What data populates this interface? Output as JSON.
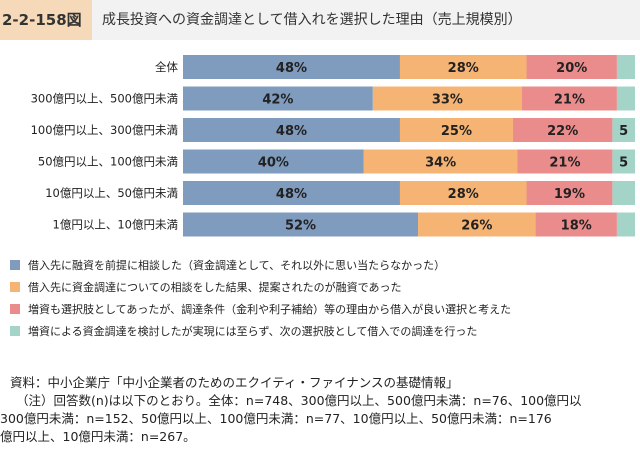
{
  "figure_number": "2-2-158図",
  "title": "成長投資への資金調達として借入れを選択した理由（売上規模別）",
  "chart_data": {
    "type": "bar",
    "stacked": "horizontal-100%",
    "categories": [
      "全体",
      "300億円以上、500億円未満",
      "100億円以上、300億円未満",
      "50億円以上、100億円未満",
      "10億円以上、50億円未満",
      "1億円以上、10億円未満"
    ],
    "series": [
      {
        "name": "借入先に融資を前提に相談した（資金調達として、それ以外に思い当たらなかった）",
        "color": "#7f9bbd",
        "values": [
          48,
          42,
          48,
          40,
          48,
          52
        ],
        "labels": [
          "48%",
          "42%",
          "48%",
          "40%",
          "48%",
          "52%"
        ]
      },
      {
        "name": "借入先に資金調達についての相談をした結果、提案されたのが融資であった",
        "color": "#f6b474",
        "values": [
          28,
          33,
          25,
          34,
          28,
          26
        ],
        "labels": [
          "28%",
          "33%",
          "25%",
          "34%",
          "28%",
          "26%"
        ]
      },
      {
        "name": "増資も選択肢としてあったが、調達条件（金利や利子補給）等の理由から借入が良い選択と考えた",
        "color": "#eb8c8c",
        "values": [
          20,
          21,
          22,
          21,
          19,
          18
        ],
        "labels": [
          "20%",
          "21%",
          "22%",
          "21%",
          "19%",
          "18%"
        ]
      },
      {
        "name": "増資による資金調達を検討したが実現には至らず、次の選択肢として借入での調達を行った",
        "color": "#a4d3c8",
        "values": [
          4,
          4,
          5,
          5,
          5,
          4
        ],
        "labels": [
          "",
          "",
          "5",
          "5",
          "",
          ""
        ]
      }
    ],
    "x_ticks": [
      "0%",
      "10%",
      "20%",
      "30%",
      "40%",
      "50%",
      "60%",
      "70%",
      "80%",
      "90%",
      "1"
    ],
    "xlim": [
      0,
      100
    ]
  },
  "source": "資料：中小企業庁「中小企業者のためのエクイティ・ファイナンスの基礎情報」",
  "note_lines": [
    "（注）回答数(n)は以下のとおり。全体：n=748、300億円以上、500億円未満：n=76、100億円以",
    "300億円未満：n=152、50億円以上、100億円未満：n=77、10億円以上、50億円未満：n=176",
    "億円以上、10億円未満：n=267。"
  ]
}
